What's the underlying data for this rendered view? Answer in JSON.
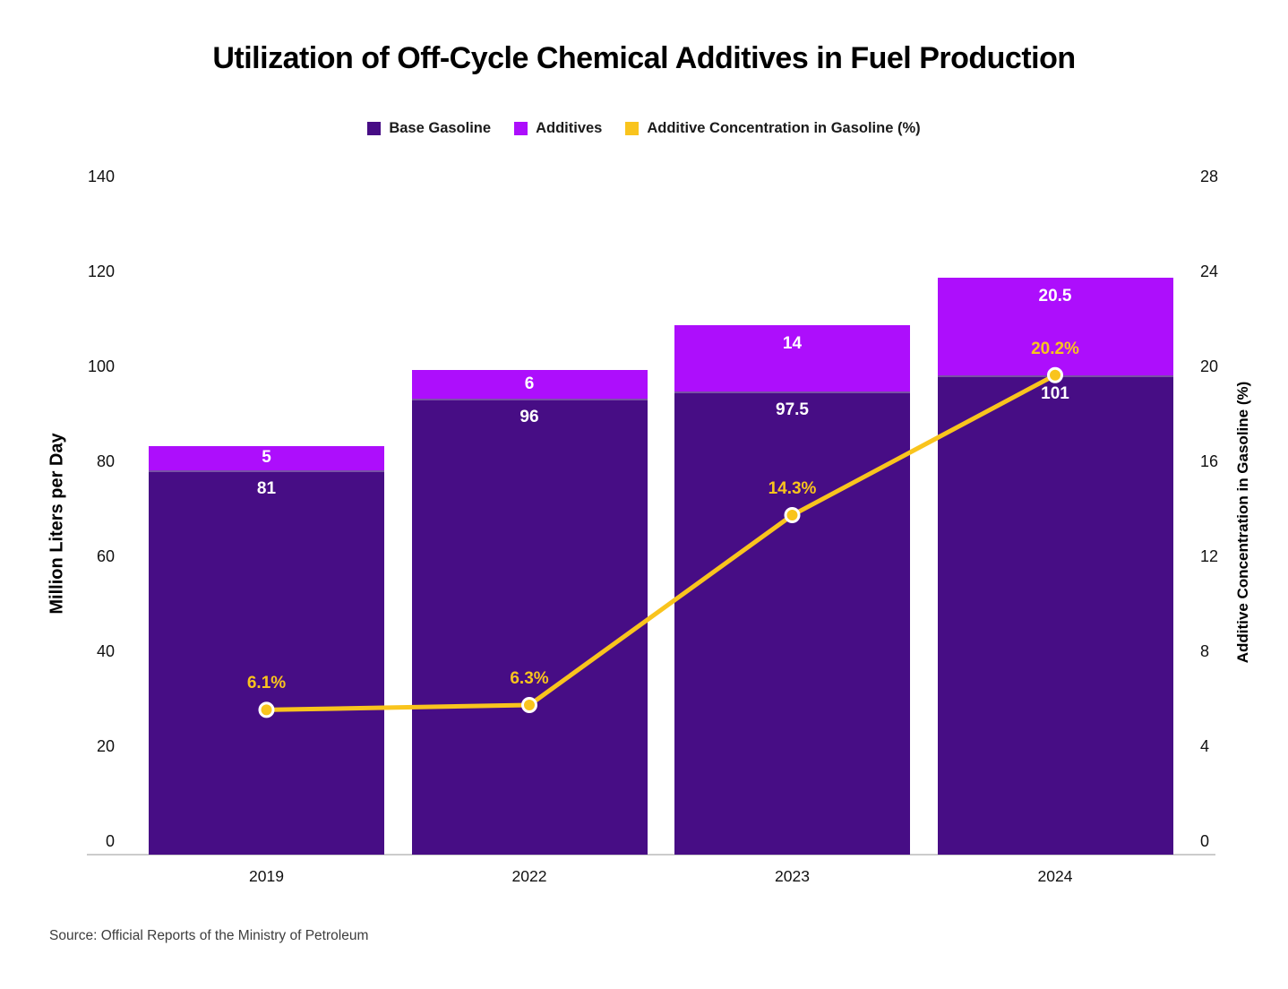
{
  "title": "Utilization of Off-Cycle Chemical Additives in Fuel Production",
  "source": "Source: Official Reports of the Ministry of Petroleum",
  "chart_data": {
    "type": "bar",
    "subtype": "stacked-bar-with-line",
    "title": "Utilization of Off-Cycle Chemical Additives in Fuel Production",
    "categories": [
      "2019",
      "2022",
      "2023",
      "2024"
    ],
    "series": [
      {
        "name": "Base Gasoline",
        "type": "bar",
        "stack": true,
        "axis": "left",
        "color": "#470d85",
        "values": [
          81,
          96,
          97.5,
          101
        ],
        "value_labels": [
          "81",
          "96",
          "97.5",
          "101"
        ]
      },
      {
        "name": "Additives",
        "type": "bar",
        "stack": true,
        "axis": "left",
        "color": "#ad0efc",
        "values": [
          5,
          6,
          14,
          20.5
        ],
        "value_labels": [
          "5",
          "6",
          "14",
          "20.5"
        ]
      },
      {
        "name": "Additive Concentration in Gasoline (%)",
        "type": "line",
        "axis": "right",
        "color": "#f9c41d",
        "values": [
          6.1,
          6.3,
          14.3,
          20.2
        ],
        "value_labels": [
          "6.1%",
          "6.3%",
          "14.3%",
          "20.2%"
        ]
      }
    ],
    "left_axis": {
      "label": "Million Liters per Day",
      "min": 0,
      "max": 140,
      "ticks": [
        0,
        20,
        40,
        60,
        80,
        100,
        120,
        140
      ]
    },
    "right_axis": {
      "label": "Additive Concentration in Gasoline (%)",
      "min": 0,
      "max": 28,
      "ticks": [
        0,
        4,
        8,
        12,
        16,
        20,
        24,
        28
      ]
    },
    "grid": false,
    "legend_position": "top",
    "background": "#ffffff"
  }
}
